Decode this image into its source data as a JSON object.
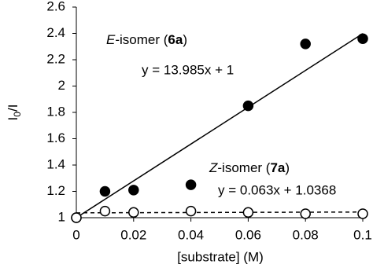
{
  "chart_data": {
    "type": "scatter",
    "x_label": "[substrate] (M)",
    "y_label_parts": [
      "I",
      "0",
      "/I"
    ],
    "xlim": [
      0,
      0.1
    ],
    "xticks": [
      0,
      0.02,
      0.04,
      0.06,
      0.08,
      0.1
    ],
    "ylim": [
      1,
      2.6
    ],
    "yticks": [
      1,
      1.2,
      1.4,
      1.6,
      1.8,
      2,
      2.2,
      2.4,
      2.6
    ],
    "grid": false,
    "series": [
      {
        "marker": "filled",
        "color": "#000000",
        "x": [
          0,
          0.01,
          0.02,
          0.04,
          0.06,
          0.08,
          0.1
        ],
        "values": [
          1,
          1.2,
          1.21,
          1.25,
          1.85,
          2.32,
          2.36
        ],
        "label_parts": [
          "E",
          "-isomer (",
          "6a",
          ")"
        ],
        "trendline": {
          "slope": 13.985,
          "intercept": 1,
          "label": "y = 13.985x + 1",
          "style": "solid"
        }
      },
      {
        "marker": "open",
        "color": "#000000",
        "x": [
          0,
          0.01,
          0.02,
          0.04,
          0.06,
          0.08,
          0.1
        ],
        "values": [
          1,
          1.05,
          1.04,
          1.05,
          1.04,
          1.03,
          1.03
        ],
        "label_parts": [
          "Z",
          "-isomer (",
          "7a",
          ")"
        ],
        "trendline": {
          "slope": 0.063,
          "intercept": 1.0368,
          "label": "y = 0.063x + 1.0368",
          "style": "dashed"
        }
      }
    ]
  }
}
